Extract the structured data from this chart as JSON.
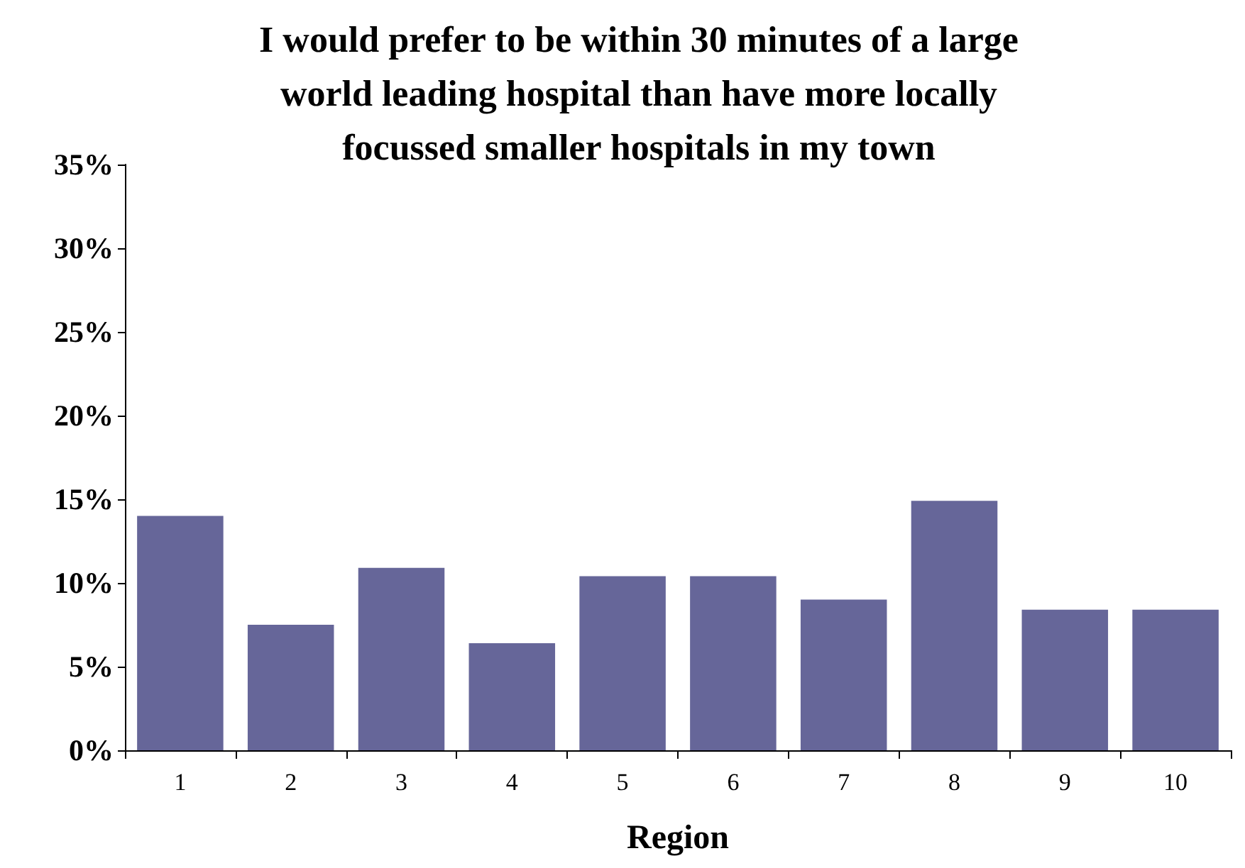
{
  "chart_data": {
    "type": "bar",
    "title": "I would prefer to be within 30 minutes of a large world leading hospital than have more locally focussed smaller hospitals in my town",
    "xlabel": "Region",
    "categories": [
      "1",
      "2",
      "3",
      "4",
      "5",
      "6",
      "7",
      "8",
      "9",
      "10"
    ],
    "values": [
      14.0,
      7.5,
      10.9,
      6.4,
      10.4,
      10.4,
      9.0,
      14.9,
      8.4,
      8.4
    ],
    "color": "#666699",
    "ylim": [
      0,
      35
    ],
    "yticks": [
      {
        "value": 0,
        "label": "0%"
      },
      {
        "value": 5,
        "label": "5%"
      },
      {
        "value": 10,
        "label": "10%"
      },
      {
        "value": 15,
        "label": "15%"
      },
      {
        "value": 20,
        "label": "20%"
      },
      {
        "value": 25,
        "label": "25%"
      },
      {
        "value": 30,
        "label": "30%"
      },
      {
        "value": 35,
        "label": "35%"
      }
    ],
    "grid": false
  }
}
